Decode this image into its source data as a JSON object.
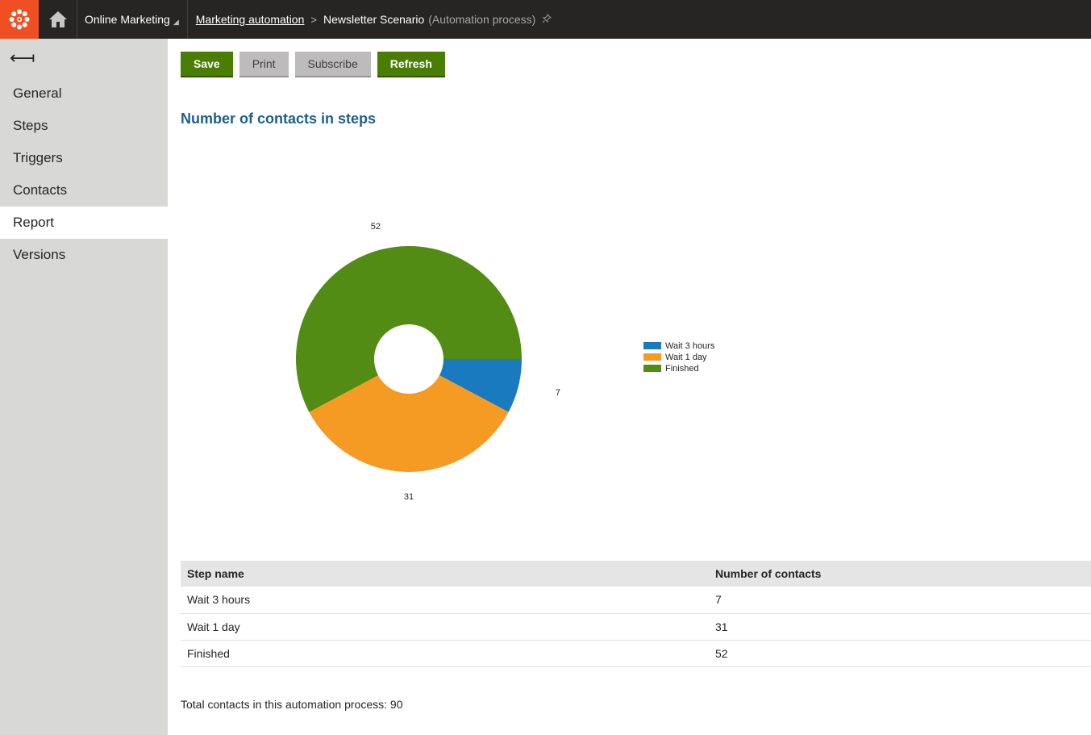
{
  "header": {
    "app_name": "Online Marketing",
    "breadcrumb_link": "Marketing automation",
    "breadcrumb_separator": ">",
    "page_name": "Newsletter Scenario",
    "page_subtitle": "(Automation process)"
  },
  "sidebar": {
    "back_label": "⟻",
    "items": [
      {
        "label": "General"
      },
      {
        "label": "Steps"
      },
      {
        "label": "Triggers"
      },
      {
        "label": "Contacts"
      },
      {
        "label": "Report"
      },
      {
        "label": "Versions"
      }
    ],
    "active": "Report"
  },
  "toolbar": {
    "save_label": "Save",
    "print_label": "Print",
    "subscribe_label": "Subscribe",
    "refresh_label": "Refresh"
  },
  "report": {
    "title": "Number of contacts in steps",
    "table": {
      "headers": [
        "Step name",
        "Number of contacts"
      ],
      "rows": [
        {
          "step": "Wait 3 hours",
          "count": "7"
        },
        {
          "step": "Wait 1 day",
          "count": "31"
        },
        {
          "step": "Finished",
          "count": "52"
        }
      ]
    },
    "total_text": "Total contacts in this automation process: 90"
  },
  "colors": {
    "accent": "#f04e23",
    "primary_button": "#497d04",
    "series_wait3h": "#1a7abf",
    "series_wait1d": "#f59b24",
    "series_finished": "#528c14"
  },
  "chart_data": {
    "type": "pie",
    "title": "",
    "categories": [
      "Wait 3 hours",
      "Wait 1 day",
      "Finished"
    ],
    "values": [
      7,
      31,
      52
    ],
    "colors": [
      "#1a7abf",
      "#f59b24",
      "#528c14"
    ],
    "legend_position": "right",
    "donut": true
  }
}
